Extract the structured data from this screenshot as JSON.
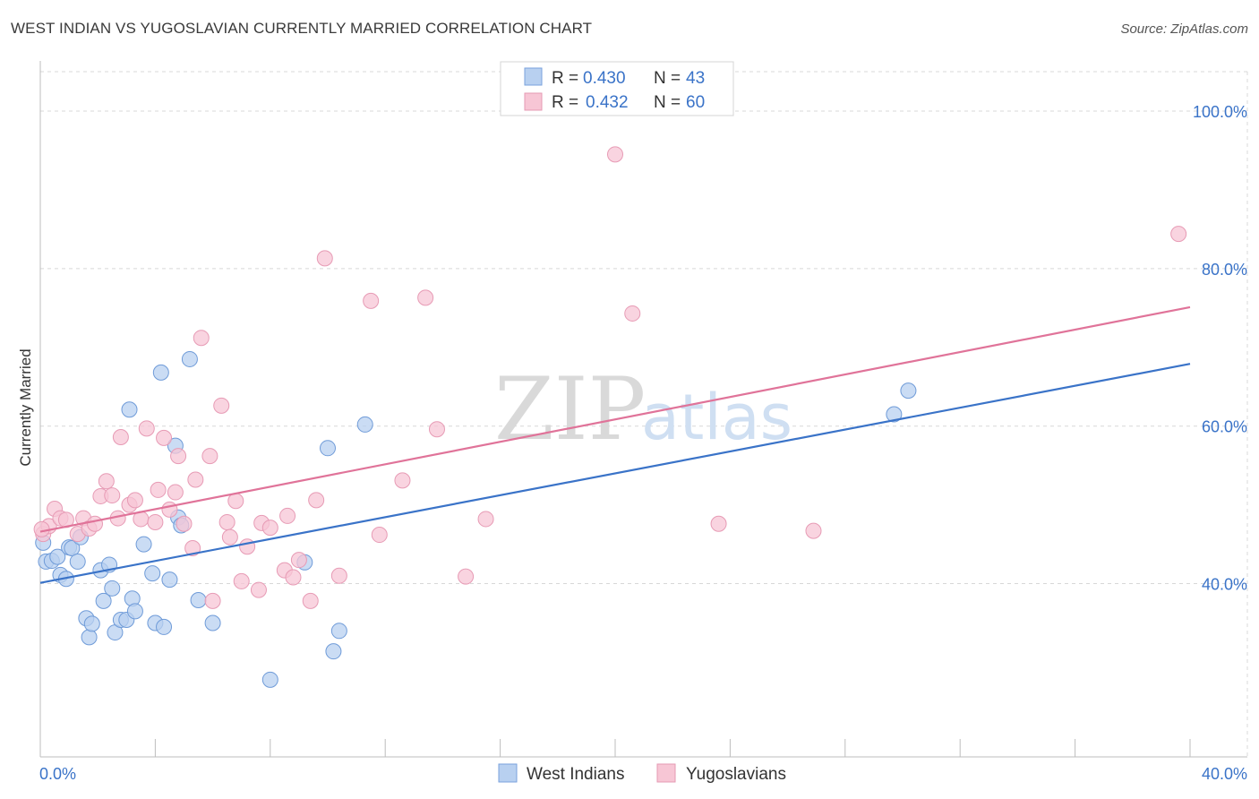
{
  "title": "WEST INDIAN VS YUGOSLAVIAN CURRENTLY MARRIED CORRELATION CHART",
  "source": "Source: ZipAtlas.com",
  "watermark": {
    "zip": "ZIP",
    "atlas": "atlas"
  },
  "colors": {
    "blue": "#3a73c8",
    "blue_fill": "#b8d0f0",
    "pink": "#e07399",
    "pink_fill": "#f7c6d5",
    "grid": "#d8d8d8"
  },
  "legend": {
    "blue": {
      "r_label": "R =",
      "r_value": "0.430",
      "n_label": "N =",
      "n_value": "43"
    },
    "pink": {
      "r_label": "R =",
      "r_value": "0.432",
      "n_label": "N =",
      "n_value": "60"
    }
  },
  "chart_data": {
    "type": "scatter",
    "title": "WEST INDIAN VS YUGOSLAVIAN CURRENTLY MARRIED CORRELATION CHART",
    "xlabel": "",
    "ylabel": "Currently Married",
    "xlim": [
      0,
      40
    ],
    "ylim": [
      18,
      105
    ],
    "x_tick_labels": [
      "0.0%",
      "40.0%"
    ],
    "y_ticks": [
      40,
      60,
      80,
      100
    ],
    "y_tick_labels": [
      "40.0%",
      "60.0%",
      "80.0%",
      "100.0%"
    ],
    "series": [
      {
        "name": "West Indians",
        "trend": {
          "x": [
            0,
            40
          ],
          "y": [
            40.1,
            67.9
          ]
        },
        "points": [
          [
            0.1,
            45.2
          ],
          [
            0.2,
            42.8
          ],
          [
            0.4,
            42.9
          ],
          [
            0.6,
            43.4
          ],
          [
            0.7,
            41.1
          ],
          [
            0.9,
            40.6
          ],
          [
            1.0,
            44.6
          ],
          [
            1.1,
            44.5
          ],
          [
            1.3,
            42.8
          ],
          [
            1.4,
            45.9
          ],
          [
            1.6,
            35.6
          ],
          [
            1.7,
            33.2
          ],
          [
            1.8,
            34.9
          ],
          [
            2.1,
            41.7
          ],
          [
            2.2,
            37.8
          ],
          [
            2.4,
            42.4
          ],
          [
            2.5,
            39.4
          ],
          [
            2.6,
            33.8
          ],
          [
            2.8,
            35.4
          ],
          [
            3.0,
            35.4
          ],
          [
            3.1,
            62.1
          ],
          [
            3.2,
            38.1
          ],
          [
            3.3,
            36.5
          ],
          [
            3.6,
            45.0
          ],
          [
            3.9,
            41.3
          ],
          [
            4.0,
            35.0
          ],
          [
            4.2,
            66.8
          ],
          [
            4.3,
            34.5
          ],
          [
            4.5,
            40.5
          ],
          [
            4.7,
            57.5
          ],
          [
            4.8,
            48.4
          ],
          [
            4.9,
            47.4
          ],
          [
            5.2,
            68.5
          ],
          [
            5.5,
            37.9
          ],
          [
            6.0,
            35.0
          ],
          [
            8.0,
            27.8
          ],
          [
            9.2,
            42.7
          ],
          [
            10.0,
            57.2
          ],
          [
            10.2,
            31.4
          ],
          [
            10.4,
            34.0
          ],
          [
            11.3,
            60.2
          ],
          [
            29.7,
            61.5
          ],
          [
            30.2,
            64.5
          ]
        ]
      },
      {
        "name": "Yugoslavians",
        "trend": {
          "x": [
            0,
            40
          ],
          "y": [
            46.6,
            75.1
          ]
        },
        "points": [
          [
            0.1,
            46.3
          ],
          [
            0.3,
            47.3
          ],
          [
            0.5,
            49.5
          ],
          [
            0.7,
            48.3
          ],
          [
            0.9,
            48.1
          ],
          [
            1.3,
            46.3
          ],
          [
            1.5,
            48.3
          ],
          [
            1.7,
            47.0
          ],
          [
            1.9,
            47.6
          ],
          [
            2.1,
            51.1
          ],
          [
            2.3,
            53.0
          ],
          [
            2.5,
            51.2
          ],
          [
            2.7,
            48.3
          ],
          [
            2.8,
            58.6
          ],
          [
            3.1,
            50.0
          ],
          [
            3.3,
            50.6
          ],
          [
            3.5,
            48.2
          ],
          [
            3.7,
            59.7
          ],
          [
            4.0,
            47.8
          ],
          [
            4.1,
            51.9
          ],
          [
            4.3,
            58.5
          ],
          [
            4.5,
            49.4
          ],
          [
            4.7,
            51.6
          ],
          [
            4.8,
            56.2
          ],
          [
            5.0,
            47.6
          ],
          [
            5.3,
            44.5
          ],
          [
            5.4,
            53.2
          ],
          [
            5.6,
            71.2
          ],
          [
            5.9,
            56.2
          ],
          [
            6.0,
            37.8
          ],
          [
            6.3,
            62.6
          ],
          [
            6.5,
            47.8
          ],
          [
            6.6,
            45.9
          ],
          [
            6.8,
            50.5
          ],
          [
            7.0,
            40.3
          ],
          [
            7.2,
            44.7
          ],
          [
            7.6,
            39.2
          ],
          [
            7.7,
            47.7
          ],
          [
            8.0,
            47.1
          ],
          [
            8.5,
            41.7
          ],
          [
            8.6,
            48.6
          ],
          [
            8.8,
            40.8
          ],
          [
            9.0,
            43.0
          ],
          [
            9.4,
            37.8
          ],
          [
            9.6,
            50.6
          ],
          [
            9.9,
            81.3
          ],
          [
            10.4,
            41.0
          ],
          [
            11.5,
            75.9
          ],
          [
            11.8,
            46.2
          ],
          [
            12.6,
            53.1
          ],
          [
            13.4,
            76.3
          ],
          [
            13.8,
            59.6
          ],
          [
            14.8,
            40.9
          ],
          [
            15.5,
            48.2
          ],
          [
            20.0,
            94.5
          ],
          [
            20.6,
            74.3
          ],
          [
            23.6,
            47.6
          ],
          [
            26.9,
            46.7
          ],
          [
            39.6,
            84.4
          ],
          [
            0.05,
            46.9
          ]
        ]
      }
    ],
    "legend_position": "top-center",
    "bottom_legend": [
      "West Indians",
      "Yugoslavians"
    ]
  }
}
